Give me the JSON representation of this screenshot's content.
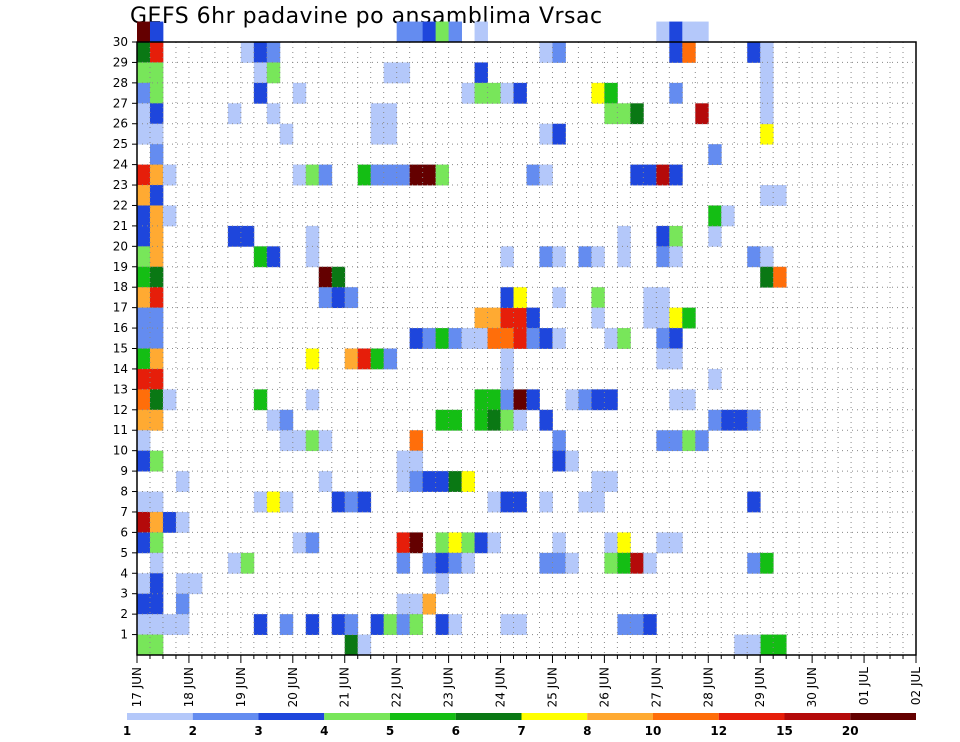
{
  "chart_data": {
    "type": "heatmap",
    "title": "GEFS 6hr padavine po ansamblima Vrsac",
    "y_categories": [
      "1",
      "2",
      "3",
      "4",
      "5",
      "6",
      "7",
      "8",
      "9",
      "10",
      "11",
      "12",
      "13",
      "14",
      "15",
      "16",
      "17",
      "18",
      "19",
      "20",
      "21",
      "22",
      "23",
      "24",
      "25",
      "26",
      "27",
      "28",
      "29",
      "30"
    ],
    "x_tick_labels": [
      "17 JUN",
      "18 JUN",
      "19 JUN",
      "20 JUN",
      "21 JUN",
      "22 JUN",
      "23 JUN",
      "24 JUN",
      "25 JUN",
      "26 JUN",
      "27 JUN",
      "28 JUN",
      "29 JUN",
      "30 JUN",
      "01 JUL",
      "02 JUL"
    ],
    "x_steps_per_day": 4,
    "x_range_steps": [
      0,
      60
    ],
    "y_range": [
      0,
      30
    ],
    "grid": true,
    "legend_placement": "bottom",
    "legend": {
      "colors": [
        "#b4c8fa",
        "#648cf0",
        "#1e46dc",
        "#78e65a",
        "#14be14",
        "#0a7814",
        "#ffff00",
        "#ffaa32",
        "#ff6e0a",
        "#e61e0a",
        "#b40a0a",
        "#640000"
      ],
      "labels": [
        "1",
        "2",
        "3",
        "4",
        "5",
        "6",
        "7",
        "8",
        "10",
        "12",
        "15",
        "20"
      ]
    },
    "cells": [
      [
        0,
        30,
        11
      ],
      [
        1,
        30,
        2
      ],
      [
        0,
        29,
        5
      ],
      [
        1,
        29,
        9
      ],
      [
        0,
        28,
        3
      ],
      [
        1,
        28,
        3
      ],
      [
        0,
        27,
        1
      ],
      [
        1,
        27,
        3
      ],
      [
        0,
        26,
        0
      ],
      [
        1,
        26,
        2
      ],
      [
        0,
        25,
        0
      ],
      [
        1,
        25,
        0
      ],
      [
        1,
        24,
        1
      ],
      [
        0,
        23,
        9
      ],
      [
        1,
        23,
        7
      ],
      [
        2,
        23,
        0
      ],
      [
        0,
        22,
        7
      ],
      [
        1,
        22,
        2
      ],
      [
        0,
        21,
        2
      ],
      [
        1,
        21,
        7
      ],
      [
        2,
        21,
        0
      ],
      [
        0,
        20,
        2
      ],
      [
        1,
        20,
        7
      ],
      [
        0,
        19,
        3
      ],
      [
        1,
        19,
        7
      ],
      [
        0,
        18,
        4
      ],
      [
        1,
        18,
        5
      ],
      [
        0,
        17,
        7
      ],
      [
        1,
        17,
        9
      ],
      [
        0,
        16,
        1
      ],
      [
        1,
        16,
        1
      ],
      [
        0,
        15,
        1
      ],
      [
        1,
        15,
        1
      ],
      [
        0,
        14,
        4
      ],
      [
        1,
        14,
        7
      ],
      [
        0,
        13,
        9
      ],
      [
        1,
        13,
        9
      ],
      [
        0,
        12,
        8
      ],
      [
        1,
        12,
        5
      ],
      [
        2,
        12,
        0
      ],
      [
        0,
        11,
        7
      ],
      [
        1,
        11,
        7
      ],
      [
        0,
        10,
        0
      ],
      [
        0,
        9,
        2
      ],
      [
        1,
        9,
        3
      ],
      [
        0,
        7,
        0
      ],
      [
        1,
        7,
        0
      ],
      [
        0,
        6,
        10
      ],
      [
        1,
        6,
        7
      ],
      [
        2,
        6,
        2
      ],
      [
        0,
        5,
        2
      ],
      [
        1,
        5,
        3
      ],
      [
        1,
        4,
        0
      ],
      [
        0,
        3,
        0
      ],
      [
        1,
        3,
        2
      ],
      [
        0,
        2,
        2
      ],
      [
        1,
        2,
        2
      ],
      [
        0,
        1,
        0
      ],
      [
        1,
        1,
        0
      ],
      [
        2,
        1,
        0
      ],
      [
        0,
        0,
        3
      ],
      [
        1,
        0,
        3
      ],
      [
        3,
        8,
        0
      ],
      [
        3,
        3,
        0
      ],
      [
        4,
        3,
        0
      ],
      [
        3,
        6,
        0
      ],
      [
        3,
        2,
        1
      ],
      [
        3,
        1,
        0
      ],
      [
        7,
        26,
        0
      ],
      [
        7,
        20,
        2
      ],
      [
        8,
        20,
        2
      ],
      [
        7,
        4,
        0
      ],
      [
        8,
        4,
        3
      ],
      [
        8,
        29,
        0
      ],
      [
        9,
        29,
        2
      ],
      [
        10,
        29,
        1
      ],
      [
        9,
        28,
        0
      ],
      [
        10,
        28,
        3
      ],
      [
        9,
        27,
        2
      ],
      [
        9,
        19,
        4
      ],
      [
        10,
        19,
        2
      ],
      [
        9,
        12,
        4
      ],
      [
        10,
        11,
        0
      ],
      [
        11,
        11,
        1
      ],
      [
        9,
        7,
        0
      ],
      [
        10,
        7,
        6
      ],
      [
        11,
        7,
        0
      ],
      [
        9,
        1,
        2
      ],
      [
        10,
        26,
        0
      ],
      [
        11,
        25,
        0
      ],
      [
        11,
        10,
        0
      ],
      [
        12,
        10,
        0
      ],
      [
        13,
        10,
        3
      ],
      [
        14,
        10,
        0
      ],
      [
        11,
        1,
        1
      ],
      [
        13,
        1,
        2
      ],
      [
        12,
        23,
        0
      ],
      [
        13,
        23,
        3
      ],
      [
        12,
        5,
        0
      ],
      [
        13,
        5,
        1
      ],
      [
        12,
        27,
        0
      ],
      [
        13,
        20,
        0
      ],
      [
        13,
        19,
        0
      ],
      [
        13,
        14,
        6
      ],
      [
        13,
        12,
        0
      ],
      [
        14,
        18,
        11
      ],
      [
        15,
        18,
        5
      ],
      [
        14,
        17,
        1
      ],
      [
        15,
        17,
        2
      ],
      [
        16,
        17,
        1
      ],
      [
        14,
        23,
        1
      ],
      [
        14,
        8,
        0
      ],
      [
        15,
        7,
        2
      ],
      [
        16,
        7,
        1
      ],
      [
        17,
        7,
        2
      ],
      [
        15,
        1,
        2
      ],
      [
        16,
        14,
        7
      ],
      [
        17,
        14,
        9
      ],
      [
        18,
        14,
        4
      ],
      [
        19,
        14,
        1
      ],
      [
        17,
        23,
        4
      ],
      [
        18,
        23,
        1
      ],
      [
        19,
        23,
        1
      ],
      [
        20,
        23,
        1
      ],
      [
        21,
        23,
        11
      ],
      [
        22,
        23,
        11
      ],
      [
        23,
        23,
        3
      ],
      [
        16,
        0,
        5
      ],
      [
        17,
        0,
        0
      ],
      [
        16,
        1,
        1
      ],
      [
        18,
        1,
        2
      ],
      [
        19,
        1,
        3
      ],
      [
        18,
        26,
        0
      ],
      [
        18,
        25,
        0
      ],
      [
        19,
        25,
        0
      ],
      [
        19,
        26,
        0
      ],
      [
        19,
        28,
        0
      ],
      [
        20,
        28,
        0
      ],
      [
        20,
        30,
        1
      ],
      [
        21,
        30,
        1
      ],
      [
        22,
        30,
        2
      ],
      [
        23,
        30,
        3
      ],
      [
        24,
        30,
        1
      ],
      [
        21,
        15,
        2
      ],
      [
        22,
        15,
        1
      ],
      [
        23,
        15,
        4
      ],
      [
        24,
        15,
        1
      ],
      [
        25,
        15,
        0
      ],
      [
        26,
        15,
        0
      ],
      [
        23,
        11,
        4
      ],
      [
        24,
        11,
        4
      ],
      [
        21,
        10,
        8
      ],
      [
        20,
        9,
        0
      ],
      [
        21,
        9,
        0
      ],
      [
        20,
        8,
        0
      ],
      [
        21,
        8,
        1
      ],
      [
        22,
        8,
        2
      ],
      [
        23,
        8,
        2
      ],
      [
        24,
        8,
        5
      ],
      [
        25,
        8,
        6
      ],
      [
        20,
        5,
        9
      ],
      [
        21,
        5,
        11
      ],
      [
        23,
        5,
        3
      ],
      [
        24,
        5,
        6
      ],
      [
        25,
        5,
        3
      ],
      [
        26,
        5,
        2
      ],
      [
        20,
        4,
        1
      ],
      [
        22,
        4,
        1
      ],
      [
        23,
        4,
        2
      ],
      [
        24,
        4,
        1
      ],
      [
        25,
        4,
        0
      ],
      [
        23,
        3,
        0
      ],
      [
        20,
        2,
        0
      ],
      [
        21,
        2,
        0
      ],
      [
        22,
        2,
        7
      ],
      [
        20,
        1,
        1
      ],
      [
        21,
        1,
        3
      ],
      [
        23,
        1,
        2
      ],
      [
        24,
        1,
        0
      ],
      [
        26,
        30,
        0
      ],
      [
        26,
        28,
        2
      ],
      [
        25,
        27,
        0
      ],
      [
        26,
        27,
        3
      ],
      [
        27,
        27,
        3
      ],
      [
        28,
        27,
        0
      ],
      [
        29,
        27,
        2
      ],
      [
        26,
        16,
        7
      ],
      [
        27,
        16,
        7
      ],
      [
        28,
        16,
        9
      ],
      [
        29,
        16,
        9
      ],
      [
        30,
        16,
        2
      ],
      [
        26,
        15,
        0
      ],
      [
        27,
        15,
        8
      ],
      [
        28,
        15,
        8
      ],
      [
        29,
        15,
        9
      ],
      [
        30,
        15,
        1
      ],
      [
        31,
        15,
        2
      ],
      [
        32,
        15,
        0
      ],
      [
        26,
        12,
        4
      ],
      [
        27,
        12,
        4
      ],
      [
        28,
        12,
        1
      ],
      [
        29,
        12,
        11
      ],
      [
        30,
        12,
        2
      ],
      [
        26,
        11,
        4
      ],
      [
        27,
        11,
        5
      ],
      [
        28,
        11,
        3
      ],
      [
        29,
        11,
        0
      ],
      [
        31,
        11,
        2
      ],
      [
        28,
        14,
        0
      ],
      [
        28,
        13,
        0
      ],
      [
        28,
        17,
        2
      ],
      [
        29,
        17,
        6
      ],
      [
        28,
        19,
        0
      ],
      [
        27,
        7,
        0
      ],
      [
        28,
        7,
        2
      ],
      [
        29,
        7,
        2
      ],
      [
        31,
        7,
        0
      ],
      [
        27,
        5,
        0
      ],
      [
        28,
        1,
        0
      ],
      [
        29,
        1,
        0
      ],
      [
        30,
        23,
        1
      ],
      [
        31,
        23,
        0
      ],
      [
        31,
        19,
        1
      ],
      [
        32,
        19,
        0
      ],
      [
        31,
        29,
        0
      ],
      [
        32,
        29,
        1
      ],
      [
        31,
        25,
        0
      ],
      [
        32,
        25,
        2
      ],
      [
        32,
        17,
        0
      ],
      [
        32,
        10,
        1
      ],
      [
        32,
        9,
        2
      ],
      [
        33,
        9,
        0
      ],
      [
        32,
        5,
        0
      ],
      [
        31,
        4,
        1
      ],
      [
        32,
        4,
        1
      ],
      [
        33,
        4,
        0
      ],
      [
        33,
        12,
        0
      ],
      [
        34,
        12,
        1
      ],
      [
        34,
        7,
        0
      ],
      [
        35,
        7,
        0
      ],
      [
        35,
        8,
        0
      ],
      [
        36,
        8,
        0
      ],
      [
        35,
        27,
        6
      ],
      [
        36,
        27,
        4
      ],
      [
        36,
        26,
        3
      ],
      [
        37,
        26,
        3
      ],
      [
        38,
        26,
        5
      ],
      [
        34,
        19,
        1
      ],
      [
        35,
        19,
        0
      ],
      [
        37,
        20,
        0
      ],
      [
        37,
        19,
        0
      ],
      [
        35,
        12,
        2
      ],
      [
        36,
        12,
        2
      ],
      [
        35,
        17,
        3
      ],
      [
        35,
        16,
        0
      ],
      [
        36,
        15,
        0
      ],
      [
        37,
        15,
        3
      ],
      [
        36,
        5,
        0
      ],
      [
        37,
        5,
        6
      ],
      [
        36,
        4,
        3
      ],
      [
        37,
        4,
        4
      ],
      [
        38,
        4,
        10
      ],
      [
        39,
        4,
        0
      ],
      [
        37,
        1,
        1
      ],
      [
        38,
        1,
        1
      ],
      [
        39,
        1,
        2
      ],
      [
        38,
        23,
        2
      ],
      [
        39,
        23,
        2
      ],
      [
        40,
        23,
        10
      ],
      [
        41,
        23,
        2
      ],
      [
        40,
        30,
        0
      ],
      [
        41,
        30,
        2
      ],
      [
        42,
        30,
        0
      ],
      [
        43,
        30,
        0
      ],
      [
        41,
        29,
        2
      ],
      [
        42,
        29,
        8
      ],
      [
        41,
        27,
        1
      ],
      [
        40,
        20,
        2
      ],
      [
        41,
        20,
        3
      ],
      [
        40,
        19,
        1
      ],
      [
        41,
        19,
        0
      ],
      [
        40,
        17,
        0
      ],
      [
        40,
        16,
        0
      ],
      [
        41,
        16,
        6
      ],
      [
        42,
        16,
        4
      ],
      [
        40,
        15,
        1
      ],
      [
        41,
        15,
        2
      ],
      [
        40,
        14,
        0
      ],
      [
        41,
        14,
        0
      ],
      [
        41,
        12,
        0
      ],
      [
        42,
        12,
        0
      ],
      [
        40,
        10,
        1
      ],
      [
        41,
        10,
        1
      ],
      [
        42,
        10,
        3
      ],
      [
        43,
        10,
        1
      ],
      [
        40,
        5,
        0
      ],
      [
        41,
        5,
        0
      ],
      [
        39,
        17,
        0
      ],
      [
        39,
        16,
        0
      ],
      [
        43,
        26,
        10
      ],
      [
        44,
        24,
        1
      ],
      [
        44,
        20,
        0
      ],
      [
        44,
        21,
        4
      ],
      [
        45,
        21,
        0
      ],
      [
        44,
        13,
        0
      ],
      [
        44,
        11,
        1
      ],
      [
        45,
        11,
        2
      ],
      [
        46,
        11,
        2
      ],
      [
        47,
        11,
        1
      ],
      [
        47,
        19,
        1
      ],
      [
        48,
        19,
        0
      ],
      [
        47,
        29,
        2
      ],
      [
        48,
        29,
        0
      ],
      [
        48,
        28,
        0
      ],
      [
        48,
        27,
        0
      ],
      [
        48,
        25,
        6
      ],
      [
        48,
        26,
        0
      ],
      [
        48,
        22,
        0
      ],
      [
        49,
        22,
        0
      ],
      [
        48,
        18,
        5
      ],
      [
        49,
        18,
        8
      ],
      [
        47,
        4,
        1
      ],
      [
        48,
        4,
        4
      ],
      [
        47,
        7,
        2
      ],
      [
        49,
        0,
        4
      ],
      [
        48,
        0,
        4
      ],
      [
        46,
        0,
        0
      ],
      [
        47,
        0,
        0
      ]
    ]
  }
}
